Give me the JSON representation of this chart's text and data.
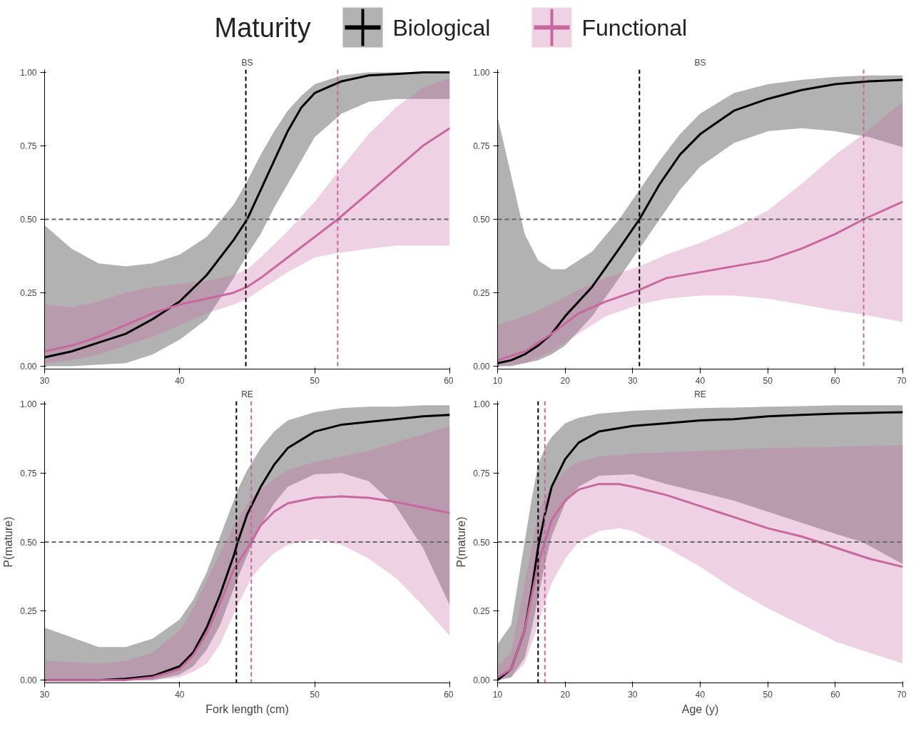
{
  "chart_data": [
    {
      "type": "line",
      "title": "BS",
      "legend": "top",
      "legend_title": "Maturity",
      "xlim": [
        30,
        60
      ],
      "xticks": [
        30,
        40,
        50,
        60
      ],
      "ylim": [
        -0.01,
        1.01
      ],
      "yticks": [
        {
          "value": 0,
          "label": "0.00"
        },
        {
          "value": 0.25,
          "label": "0.25"
        },
        {
          "value": 0.5,
          "label": "0.50"
        },
        {
          "value": 0.75,
          "label": "0.75"
        },
        {
          "value": 1,
          "label": "1.00"
        }
      ],
      "series": [
        {
          "name": "Biological",
          "color": "#000000",
          "x": [
            30,
            32,
            34,
            36,
            38,
            40,
            42,
            44,
            45,
            46,
            47,
            48,
            49,
            50,
            52,
            54,
            56,
            58,
            60
          ],
          "values": [
            0.03,
            0.05,
            0.08,
            0.11,
            0.16,
            0.22,
            0.31,
            0.43,
            0.5,
            0.6,
            0.7,
            0.8,
            0.88,
            0.93,
            0.97,
            0.99,
            0.995,
            1.0,
            1.0
          ],
          "lower": [
            0.0,
            0.0,
            0.005,
            0.01,
            0.04,
            0.09,
            0.16,
            0.3,
            0.38,
            0.45,
            0.54,
            0.62,
            0.7,
            0.78,
            0.86,
            0.9,
            0.91,
            0.91,
            0.91
          ],
          "upper": [
            0.48,
            0.4,
            0.35,
            0.34,
            0.35,
            0.38,
            0.44,
            0.55,
            0.63,
            0.72,
            0.8,
            0.87,
            0.92,
            0.96,
            0.99,
            1.0,
            1.0,
            1.0,
            1.0
          ]
        },
        {
          "name": "Functional",
          "color": "#c7689f",
          "x": [
            30,
            32,
            34,
            36,
            38,
            40,
            42,
            44,
            45,
            46,
            48,
            50,
            51.7,
            54,
            56,
            58,
            60
          ],
          "values": [
            0.05,
            0.07,
            0.1,
            0.14,
            0.18,
            0.21,
            0.23,
            0.25,
            0.27,
            0.3,
            0.37,
            0.44,
            0.5,
            0.59,
            0.67,
            0.75,
            0.81
          ],
          "lower": [
            0.01,
            0.02,
            0.04,
            0.07,
            0.1,
            0.14,
            0.18,
            0.21,
            0.23,
            0.26,
            0.32,
            0.37,
            0.385,
            0.4,
            0.41,
            0.41,
            0.41
          ],
          "upper": [
            0.21,
            0.2,
            0.22,
            0.25,
            0.27,
            0.28,
            0.29,
            0.31,
            0.33,
            0.37,
            0.46,
            0.56,
            0.66,
            0.79,
            0.88,
            0.95,
            0.98
          ]
        }
      ],
      "ref_lines": [
        {
          "axis": "x",
          "value": 44.9,
          "color": "#000000",
          "line_style": "dashed"
        },
        {
          "axis": "x",
          "value": 51.7,
          "color": "#c7689f",
          "line_style": "dashed"
        },
        {
          "axis": "y",
          "value": 0.5,
          "color": "#666666",
          "line_style": "dashed"
        }
      ]
    },
    {
      "type": "line",
      "title": "BS",
      "xlim": [
        10,
        70
      ],
      "xticks": [
        10,
        20,
        30,
        40,
        50,
        60,
        70
      ],
      "ylim": [
        -0.01,
        1.01
      ],
      "yticks": [
        {
          "value": 0,
          "label": "0.00"
        },
        {
          "value": 0.25,
          "label": "0.25"
        },
        {
          "value": 0.5,
          "label": "0.50"
        },
        {
          "value": 0.75,
          "label": "0.75"
        },
        {
          "value": 1,
          "label": "1.00"
        }
      ],
      "series": [
        {
          "color": "#000000",
          "x": [
            10,
            12,
            14,
            16,
            18,
            20,
            24,
            28,
            31,
            34,
            37,
            40,
            45,
            50,
            55,
            60,
            65,
            70
          ],
          "values": [
            0.01,
            0.02,
            0.04,
            0.07,
            0.11,
            0.17,
            0.27,
            0.4,
            0.5,
            0.62,
            0.72,
            0.79,
            0.87,
            0.91,
            0.94,
            0.96,
            0.97,
            0.975
          ],
          "lower": [
            0.0,
            0.0,
            0.01,
            0.02,
            0.04,
            0.07,
            0.17,
            0.3,
            0.4,
            0.5,
            0.6,
            0.68,
            0.76,
            0.8,
            0.81,
            0.8,
            0.78,
            0.745
          ],
          "upper": [
            0.85,
            0.65,
            0.45,
            0.36,
            0.33,
            0.33,
            0.39,
            0.5,
            0.6,
            0.7,
            0.79,
            0.86,
            0.93,
            0.96,
            0.975,
            0.985,
            0.99,
            0.99
          ]
        },
        {
          "color": "#c7689f",
          "x": [
            10,
            14,
            18,
            22,
            26,
            31,
            35,
            40,
            45,
            50,
            55,
            60,
            64.2,
            70
          ],
          "values": [
            0.02,
            0.05,
            0.11,
            0.18,
            0.22,
            0.26,
            0.3,
            0.32,
            0.34,
            0.36,
            0.4,
            0.45,
            0.5,
            0.56
          ],
          "lower": [
            0.0,
            0.01,
            0.05,
            0.11,
            0.17,
            0.21,
            0.23,
            0.24,
            0.24,
            0.23,
            0.21,
            0.19,
            0.175,
            0.15
          ],
          "upper": [
            0.14,
            0.17,
            0.21,
            0.26,
            0.3,
            0.34,
            0.38,
            0.42,
            0.47,
            0.53,
            0.62,
            0.72,
            0.79,
            0.9
          ]
        }
      ],
      "ref_lines": [
        {
          "axis": "x",
          "value": 31,
          "color": "#000000",
          "line_style": "dashed"
        },
        {
          "axis": "x",
          "value": 64.2,
          "color": "#c7689f",
          "line_style": "dashed"
        },
        {
          "axis": "y",
          "value": 0.5,
          "color": "#666666",
          "line_style": "dashed"
        }
      ]
    },
    {
      "type": "line",
      "title": "RE",
      "xlabel": "Fork length (cm)",
      "ylabel": "P(mature)",
      "xlim": [
        30,
        60
      ],
      "xticks": [
        30,
        40,
        50,
        60
      ],
      "ylim": [
        -0.01,
        1.01
      ],
      "yticks": [
        {
          "value": 0,
          "label": "0.00"
        },
        {
          "value": 0.25,
          "label": "0.25"
        },
        {
          "value": 0.5,
          "label": "0.50"
        },
        {
          "value": 0.75,
          "label": "0.75"
        },
        {
          "value": 1,
          "label": "1.00"
        }
      ],
      "series": [
        {
          "color": "#000000",
          "x": [
            30,
            34,
            36,
            38,
            40,
            41,
            42,
            43,
            44,
            44.3,
            45,
            46,
            47,
            48,
            50,
            52,
            54,
            56,
            58,
            60
          ],
          "values": [
            0.0,
            0.0,
            0.005,
            0.015,
            0.05,
            0.1,
            0.19,
            0.31,
            0.45,
            0.5,
            0.6,
            0.7,
            0.78,
            0.84,
            0.9,
            0.925,
            0.935,
            0.945,
            0.955,
            0.96
          ],
          "lower": [
            0.0,
            0.0,
            0.0,
            0.0,
            0.02,
            0.05,
            0.11,
            0.2,
            0.33,
            0.37,
            0.45,
            0.56,
            0.64,
            0.7,
            0.745,
            0.75,
            0.72,
            0.63,
            0.48,
            0.27
          ],
          "upper": [
            0.19,
            0.12,
            0.12,
            0.15,
            0.22,
            0.29,
            0.39,
            0.52,
            0.65,
            0.69,
            0.76,
            0.84,
            0.9,
            0.94,
            0.97,
            0.985,
            0.99,
            0.99,
            0.995,
            0.995
          ]
        },
        {
          "color": "#c7689f",
          "x": [
            30,
            34,
            36,
            38,
            40,
            41,
            42,
            43,
            44,
            45.3,
            46,
            47,
            48,
            50,
            52,
            54,
            56,
            58,
            60
          ],
          "values": [
            0.0,
            0.0,
            0.0,
            0.01,
            0.04,
            0.09,
            0.17,
            0.28,
            0.4,
            0.5,
            0.56,
            0.61,
            0.64,
            0.66,
            0.665,
            0.66,
            0.645,
            0.625,
            0.605
          ],
          "lower": [
            0.0,
            0.0,
            0.0,
            0.0,
            0.01,
            0.03,
            0.06,
            0.13,
            0.24,
            0.37,
            0.41,
            0.46,
            0.49,
            0.51,
            0.49,
            0.44,
            0.37,
            0.27,
            0.16
          ],
          "upper": [
            0.07,
            0.06,
            0.07,
            0.1,
            0.18,
            0.26,
            0.36,
            0.46,
            0.56,
            0.66,
            0.69,
            0.73,
            0.76,
            0.79,
            0.81,
            0.83,
            0.86,
            0.89,
            0.92
          ]
        }
      ],
      "ref_lines": [
        {
          "axis": "x",
          "value": 44.2,
          "color": "#000000",
          "line_style": "dashed"
        },
        {
          "axis": "x",
          "value": 45.3,
          "color": "#c7689f",
          "line_style": "dashed"
        },
        {
          "axis": "y",
          "value": 0.5,
          "color": "#666666",
          "line_style": "dashed"
        }
      ]
    },
    {
      "type": "line",
      "title": "RE",
      "xlabel": "Age (y)",
      "ylabel": "P(mature)",
      "xlim": [
        10,
        70
      ],
      "xticks": [
        10,
        20,
        30,
        40,
        50,
        60,
        70
      ],
      "ylim": [
        -0.01,
        1.01
      ],
      "yticks": [
        {
          "value": 0,
          "label": "0.00"
        },
        {
          "value": 0.25,
          "label": "0.25"
        },
        {
          "value": 0.5,
          "label": "0.50"
        },
        {
          "value": 0.75,
          "label": "0.75"
        },
        {
          "value": 1,
          "label": "1.00"
        }
      ],
      "series": [
        {
          "color": "#000000",
          "x": [
            10,
            12,
            14,
            15,
            16,
            17,
            18,
            20,
            22,
            25,
            30,
            35,
            40,
            45,
            50,
            55,
            60,
            64,
            67,
            70
          ],
          "values": [
            0.0,
            0.04,
            0.18,
            0.32,
            0.48,
            0.6,
            0.7,
            0.8,
            0.86,
            0.9,
            0.92,
            0.93,
            0.94,
            0.945,
            0.955,
            0.96,
            0.965,
            0.967,
            0.969,
            0.97
          ],
          "lower": [
            0.0,
            0.01,
            0.08,
            0.18,
            0.3,
            0.42,
            0.52,
            0.64,
            0.7,
            0.74,
            0.745,
            0.71,
            0.68,
            0.65,
            0.61,
            0.57,
            0.53,
            0.5,
            0.46,
            0.42
          ],
          "upper": [
            0.13,
            0.2,
            0.5,
            0.65,
            0.78,
            0.84,
            0.88,
            0.93,
            0.95,
            0.965,
            0.975,
            0.98,
            0.985,
            0.987,
            0.99,
            0.992,
            0.995,
            0.995,
            0.995,
            0.995
          ]
        },
        {
          "color": "#c7689f",
          "x": [
            10,
            12,
            14,
            16,
            17,
            18,
            20,
            22,
            25,
            28,
            30,
            35,
            40,
            45,
            50,
            55,
            57.6,
            60,
            65,
            70
          ],
          "values": [
            0.01,
            0.04,
            0.18,
            0.42,
            0.5,
            0.58,
            0.65,
            0.69,
            0.71,
            0.71,
            0.7,
            0.67,
            0.63,
            0.59,
            0.55,
            0.52,
            0.5,
            0.48,
            0.44,
            0.41
          ],
          "lower": [
            0.0,
            0.01,
            0.06,
            0.2,
            0.28,
            0.35,
            0.44,
            0.5,
            0.54,
            0.55,
            0.54,
            0.48,
            0.41,
            0.33,
            0.26,
            0.2,
            0.17,
            0.14,
            0.1,
            0.06
          ],
          "upper": [
            0.05,
            0.1,
            0.35,
            0.6,
            0.66,
            0.7,
            0.76,
            0.79,
            0.81,
            0.815,
            0.82,
            0.825,
            0.83,
            0.835,
            0.84,
            0.842,
            0.843,
            0.845,
            0.848,
            0.85
          ]
        }
      ],
      "ref_lines": [
        {
          "axis": "x",
          "value": 16,
          "color": "#000000",
          "line_style": "dashed"
        },
        {
          "axis": "x",
          "value": 17,
          "color": "#c7689f",
          "line_style": "dashed"
        },
        {
          "axis": "y",
          "value": 0.5,
          "color": "#666666",
          "line_style": "dashed"
        }
      ]
    }
  ]
}
